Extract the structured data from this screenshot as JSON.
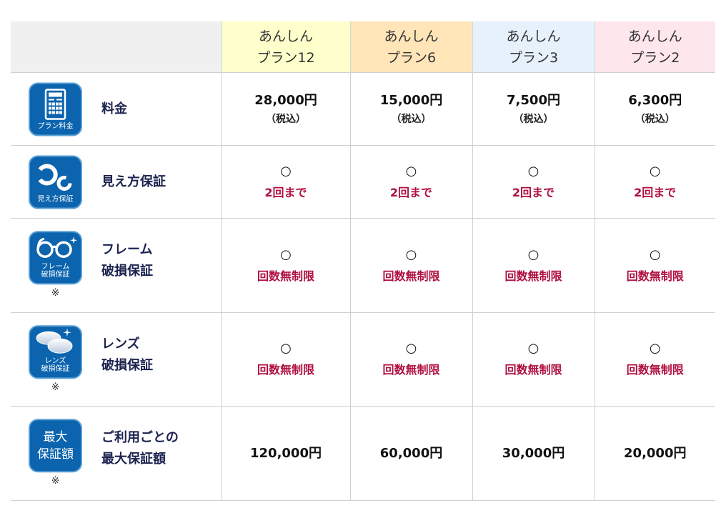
{
  "colors": {
    "plan12": "#ffffcc",
    "plan6": "#ffe5b8",
    "plan3": "#e6f1fc",
    "plan2": "#fde6ec",
    "accent_red": "#b0103f",
    "icon_blue": "#0b64ad"
  },
  "plans": [
    {
      "line1": "あんしん",
      "line2": "プラン12"
    },
    {
      "line1": "あんしん",
      "line2": "プラン6"
    },
    {
      "line1": "あんしん",
      "line2": "プラン3"
    },
    {
      "line1": "あんしん",
      "line2": "プラン2"
    }
  ],
  "rows": [
    {
      "icon": "calculator-icon",
      "icon_caption": "プラン料金",
      "label1": "料金",
      "label2": "",
      "note": "",
      "cells": [
        {
          "a": "28,000円",
          "b": "（税込）"
        },
        {
          "a": "15,000円",
          "b": "（税込）"
        },
        {
          "a": "7,500円",
          "b": "（税込）"
        },
        {
          "a": "6,300円",
          "b": "（税込）"
        }
      ]
    },
    {
      "icon": "vision-guarantee-icon",
      "icon_caption": "見え方保証",
      "label1": "見え方保証",
      "label2": "",
      "note": "",
      "cells": [
        {
          "a": "○",
          "b": "2回まで"
        },
        {
          "a": "○",
          "b": "2回まで"
        },
        {
          "a": "○",
          "b": "2回まで"
        },
        {
          "a": "○",
          "b": "2回まで"
        }
      ]
    },
    {
      "icon": "glasses-icon",
      "icon_caption1": "フレーム",
      "icon_caption2": "破損保証",
      "label1": "フレーム",
      "label2": "破損保証",
      "note": "※",
      "cells": [
        {
          "a": "○",
          "b": "回数無制限"
        },
        {
          "a": "○",
          "b": "回数無制限"
        },
        {
          "a": "○",
          "b": "回数無制限"
        },
        {
          "a": "○",
          "b": "回数無制限"
        }
      ]
    },
    {
      "icon": "lens-icon",
      "icon_caption1": "レンズ",
      "icon_caption2": "破損保証",
      "label1": "レンズ",
      "label2": "破損保証",
      "note": "※",
      "cells": [
        {
          "a": "○",
          "b": "回数無制限"
        },
        {
          "a": "○",
          "b": "回数無制限"
        },
        {
          "a": "○",
          "b": "回数無制限"
        },
        {
          "a": "○",
          "b": "回数無制限"
        }
      ]
    },
    {
      "icon": "max-amount-icon",
      "icon_caption1": "最大",
      "icon_caption2": "保証額",
      "label1": "ご利用ごとの",
      "label2": "最大保証額",
      "note": "※",
      "cells": [
        {
          "a": "120,000円"
        },
        {
          "a": "60,000円"
        },
        {
          "a": "30,000円"
        },
        {
          "a": "20,000円"
        }
      ]
    }
  ]
}
